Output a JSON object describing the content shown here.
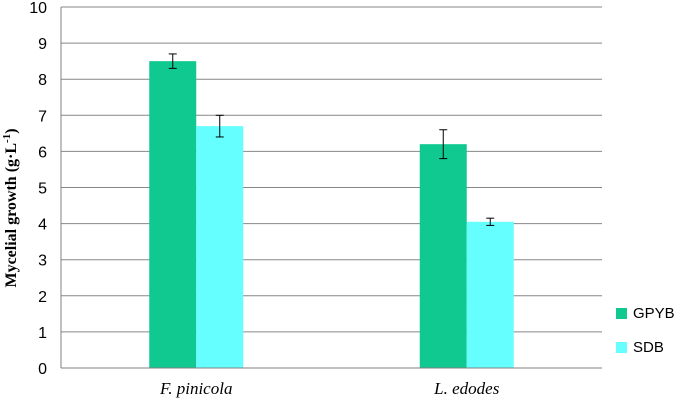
{
  "chart_data": {
    "type": "bar",
    "categories": [
      "F. pinicola",
      "L. edodes"
    ],
    "series": [
      {
        "name": "GPYB",
        "values": [
          8.5,
          6.2
        ],
        "errors": [
          0.2,
          0.4
        ],
        "color": "#10c991"
      },
      {
        "name": "SDB",
        "values": [
          6.7,
          4.05
        ],
        "errors": [
          0.3,
          0.1
        ],
        "color": "#66ffff"
      }
    ],
    "ylabel": "Mycelial growth (g·L",
    "ylabel_sup": "-1",
    "ylabel_close": ")",
    "ylim": [
      0,
      10
    ],
    "yticks": [
      "0",
      "1",
      "2",
      "3",
      "4",
      "5",
      "6",
      "7",
      "8",
      "9",
      "10"
    ],
    "grid": true,
    "legend_position": "bottom-right"
  }
}
